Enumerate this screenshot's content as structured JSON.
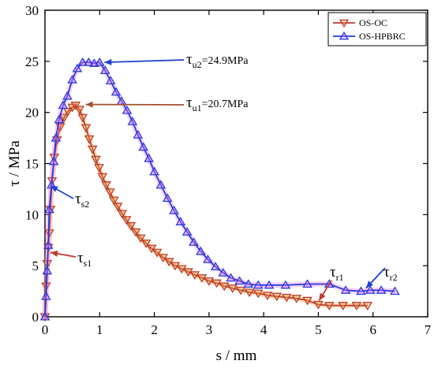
{
  "chart_data": {
    "type": "line",
    "xlabel": "s / mm",
    "ylabel": "τ / MPa",
    "xlim": [
      0,
      7
    ],
    "ylim": [
      0,
      30
    ],
    "xticks": [
      0,
      1,
      2,
      3,
      4,
      5,
      6,
      7
    ],
    "yticks": [
      0,
      5,
      10,
      15,
      20,
      25,
      30
    ],
    "grid": false,
    "legend_position": "top-right",
    "series": [
      {
        "name": "OS-OC",
        "color": "#c0392b",
        "fill": "#e9a23a",
        "marker": "triangle-down",
        "x": [
          0.0,
          0.02,
          0.04,
          0.06,
          0.08,
          0.1,
          0.13,
          0.17,
          0.22,
          0.28,
          0.35,
          0.42,
          0.5,
          0.56,
          0.63,
          0.69,
          0.75,
          0.81,
          0.87,
          0.93,
          0.99,
          1.05,
          1.12,
          1.19,
          1.26,
          1.33,
          1.41,
          1.49,
          1.57,
          1.66,
          1.75,
          1.85,
          1.95,
          2.05,
          2.16,
          2.27,
          2.38,
          2.5,
          2.62,
          2.74,
          2.87,
          3.0,
          3.14,
          3.28,
          3.43,
          3.58,
          3.74,
          3.9,
          4.07,
          4.24,
          4.42,
          4.6,
          4.8,
          5.0,
          5.2,
          5.45,
          5.7,
          5.9
        ],
        "y": [
          0.0,
          3.0,
          5.2,
          6.8,
          8.2,
          10.5,
          13.3,
          15.6,
          17.3,
          18.6,
          19.5,
          20.1,
          20.5,
          20.7,
          20.3,
          19.5,
          18.5,
          17.4,
          16.4,
          15.4,
          14.6,
          13.7,
          12.9,
          12.2,
          11.4,
          10.8,
          10.1,
          9.5,
          8.9,
          8.3,
          7.7,
          7.2,
          6.7,
          6.3,
          5.8,
          5.4,
          5.0,
          4.7,
          4.4,
          4.1,
          3.8,
          3.5,
          3.3,
          3.0,
          2.8,
          2.6,
          2.4,
          2.3,
          2.1,
          2.0,
          1.9,
          1.8,
          1.6,
          1.2,
          1.1,
          1.1,
          1.1,
          1.1
        ]
      },
      {
        "name": "OS-HPBRC",
        "color": "#1e3ed8",
        "fill": "#ff66ff",
        "marker": "triangle-up",
        "x": [
          0.0,
          0.02,
          0.04,
          0.06,
          0.08,
          0.12,
          0.16,
          0.2,
          0.26,
          0.33,
          0.41,
          0.5,
          0.59,
          0.69,
          0.8,
          0.9,
          1.0,
          1.1,
          1.2,
          1.3,
          1.4,
          1.5,
          1.6,
          1.7,
          1.8,
          1.9,
          2.0,
          2.12,
          2.24,
          2.36,
          2.48,
          2.6,
          2.72,
          2.85,
          2.98,
          3.12,
          3.26,
          3.4,
          3.56,
          3.72,
          3.9,
          4.1,
          4.4,
          4.8,
          5.2,
          5.5,
          5.78,
          5.95,
          6.15,
          6.4
        ],
        "y": [
          0.0,
          2.0,
          4.5,
          7.0,
          10.5,
          12.9,
          15.2,
          17.5,
          19.3,
          20.7,
          21.6,
          23.2,
          24.3,
          24.9,
          24.9,
          24.8,
          24.9,
          24.1,
          23.1,
          22.0,
          21.1,
          20.2,
          19.1,
          17.8,
          16.6,
          15.5,
          14.2,
          12.9,
          11.6,
          10.4,
          9.3,
          8.3,
          7.3,
          6.4,
          5.6,
          4.9,
          4.3,
          3.8,
          3.5,
          3.2,
          3.1,
          3.1,
          3.1,
          3.2,
          3.2,
          2.6,
          2.5,
          2.6,
          2.6,
          2.5
        ]
      }
    ],
    "annotations": [
      {
        "id": "tu2",
        "symbol": "τ",
        "sub": "u2",
        "suffix": "=24.9MPa",
        "x": 1.0,
        "y": 24.9,
        "color": "#1e3ed8"
      },
      {
        "id": "tu1",
        "symbol": "τ",
        "sub": "u1",
        "suffix": "=20.7MPa",
        "x": 0.6,
        "y": 20.7,
        "color": "#a0522d"
      },
      {
        "id": "ts2",
        "symbol": "τ",
        "sub": "s2",
        "suffix": "",
        "x": 0.0,
        "y": 12.9,
        "color": "#1e3ed8"
      },
      {
        "id": "ts1",
        "symbol": "τ",
        "sub": "s1",
        "suffix": "",
        "x": 0.0,
        "y": 6.3,
        "color": "#c0392b"
      },
      {
        "id": "tr1",
        "symbol": "τ",
        "sub": "r1",
        "suffix": "",
        "x": 4.97,
        "y": 1.2,
        "color": "#c0392b"
      },
      {
        "id": "tr2",
        "symbol": "τ",
        "sub": "r2",
        "suffix": "",
        "x": 5.8,
        "y": 2.5,
        "color": "#1e3ed8"
      }
    ]
  }
}
